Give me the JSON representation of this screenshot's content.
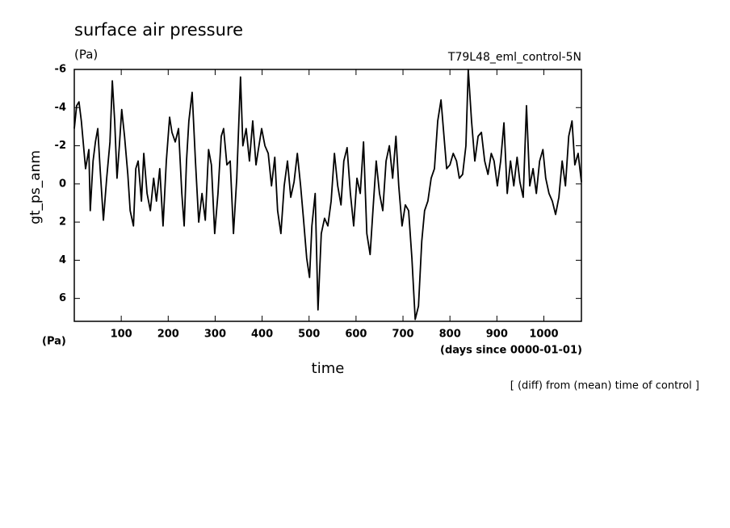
{
  "chart_data": {
    "type": "line",
    "title": "surface air pressure",
    "title_units": "(Pa)",
    "run_label": "T79L48_eml_control-5N",
    "y_label": "gt_ps_anm",
    "y_units": "(Pa)",
    "x_units": "(days since 0000-01-01)",
    "x_label": "time",
    "note": "[ (diff) from (mean) time of control ]",
    "y_inverted": true,
    "xlim": [
      0,
      1080
    ],
    "ylim": [
      -6,
      7.2
    ],
    "xticks": [
      100,
      200,
      300,
      400,
      500,
      600,
      700,
      800,
      900,
      1000
    ],
    "yticks": [
      -6,
      -4,
      -2,
      0,
      2,
      4,
      6
    ],
    "color": "#000000",
    "x": [
      0,
      5,
      10,
      15,
      24,
      31,
      34,
      40,
      45,
      50,
      55,
      62,
      69,
      76,
      81,
      86,
      91,
      96,
      101,
      107,
      114,
      119,
      126,
      131,
      136,
      143,
      148,
      155,
      162,
      169,
      175,
      182,
      189,
      196,
      203,
      208,
      215,
      222,
      229,
      234,
      239,
      244,
      251,
      258,
      265,
      272,
      279,
      286,
      292,
      299,
      306,
      313,
      318,
      325,
      332,
      339,
      346,
      354,
      359,
      366,
      373,
      380,
      387,
      392,
      399,
      406,
      413,
      420,
      427,
      433,
      440,
      447,
      454,
      461,
      468,
      475,
      482,
      488,
      495,
      501,
      506,
      513,
      519,
      526,
      533,
      540,
      547,
      554,
      561,
      568,
      574,
      581,
      588,
      595,
      602,
      609,
      616,
      623,
      630,
      636,
      643,
      650,
      657,
      664,
      671,
      678,
      685,
      691,
      698,
      705,
      712,
      719,
      726,
      733,
      740,
      746,
      753,
      760,
      767,
      774,
      781,
      786,
      793,
      800,
      807,
      814,
      820,
      827,
      834,
      839,
      846,
      853,
      860,
      867,
      874,
      881,
      888,
      894,
      901,
      908,
      915,
      922,
      929,
      936,
      943,
      949,
      956,
      963,
      970,
      977,
      984,
      991,
      998,
      1004,
      1011,
      1018,
      1025,
      1032,
      1039,
      1046,
      1053,
      1060,
      1066,
      1073,
      1080
    ],
    "values": [
      -2.9,
      -4.1,
      -4.3,
      -3.3,
      -0.8,
      -1.8,
      1.4,
      -1.2,
      -2.2,
      -2.9,
      -0.8,
      1.9,
      -0.3,
      -2.2,
      -5.4,
      -3.3,
      -0.3,
      -2.0,
      -3.9,
      -2.5,
      -0.5,
      1.4,
      2.2,
      -0.8,
      -1.2,
      0.9,
      -1.6,
      0.5,
      1.4,
      -0.3,
      0.9,
      -0.8,
      2.2,
      -1.2,
      -3.5,
      -2.7,
      -2.2,
      -2.9,
      0.5,
      2.2,
      -1.2,
      -3.3,
      -4.8,
      -1.2,
      2.0,
      0.5,
      1.9,
      -1.8,
      -1.0,
      2.6,
      0.5,
      -2.5,
      -2.9,
      -1.0,
      -1.2,
      2.6,
      -0.3,
      -5.6,
      -2.0,
      -2.9,
      -1.2,
      -3.3,
      -1.0,
      -1.8,
      -2.9,
      -2.0,
      -1.6,
      0.1,
      -1.4,
      1.4,
      2.6,
      0.1,
      -1.2,
      0.7,
      -0.1,
      -1.6,
      0.1,
      1.8,
      3.9,
      4.9,
      2.2,
      0.5,
      6.6,
      2.6,
      1.8,
      2.2,
      0.9,
      -1.6,
      0.1,
      1.1,
      -1.2,
      -1.9,
      0.5,
      2.2,
      -0.3,
      0.5,
      -2.2,
      2.6,
      3.7,
      1.4,
      -1.2,
      0.5,
      1.4,
      -1.2,
      -2.0,
      -0.3,
      -2.5,
      0.1,
      2.2,
      1.1,
      1.4,
      3.9,
      7.1,
      6.4,
      3.0,
      1.4,
      0.9,
      -0.3,
      -0.8,
      -3.3,
      -4.4,
      -2.9,
      -0.8,
      -1.0,
      -1.6,
      -1.2,
      -0.3,
      -0.5,
      -2.0,
      -6.0,
      -3.3,
      -1.2,
      -2.5,
      -2.7,
      -1.2,
      -0.5,
      -1.6,
      -1.2,
      0.1,
      -1.2,
      -3.2,
      0.5,
      -1.2,
      0.1,
      -1.4,
      -0.1,
      0.7,
      -4.1,
      0.1,
      -0.8,
      0.5,
      -1.2,
      -1.8,
      -0.3,
      0.5,
      0.9,
      1.6,
      0.7,
      -1.2,
      0.1,
      -2.5,
      -3.3,
      -1.0,
      -1.6,
      -0.1
    ]
  }
}
